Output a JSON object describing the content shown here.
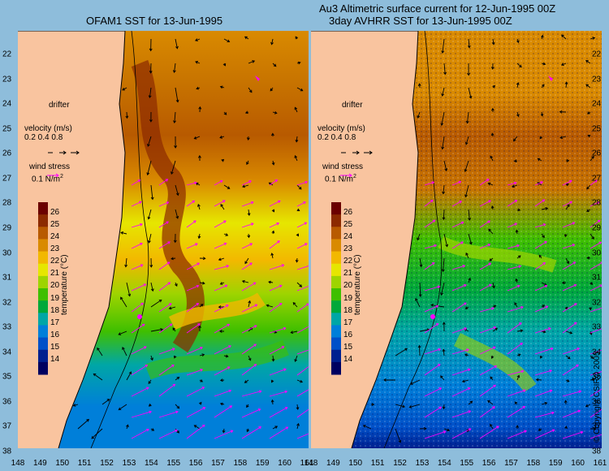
{
  "titles": {
    "left": "OFAM1 SST for 13-Jun-1995",
    "right_line1": "Au3 Altimetric surface current for 12-Jun-1995 00Z",
    "right_line2": "3day AVHRR SST for 13-Jun-1995 00Z"
  },
  "x_ticks": [
    "148",
    "149",
    "150",
    "151",
    "152",
    "153",
    "154",
    "155",
    "156",
    "157",
    "158",
    "159",
    "160",
    "161"
  ],
  "y_ticks": [
    "22",
    "23",
    "24",
    "25",
    "26",
    "27",
    "28",
    "29",
    "30",
    "31",
    "32",
    "33",
    "34",
    "35",
    "36",
    "37",
    "38"
  ],
  "legend": {
    "drifter_label": "drifter",
    "velocity_label": "velocity (m/s)",
    "velocity_values": "0.2 0.4 0.8",
    "wind_label": "wind stress",
    "wind_value": "0.1 N/m",
    "wind_unit_sup": "2"
  },
  "colorbar": {
    "axis_label": "temperature (°C)",
    "ticks": [
      "26",
      "25",
      "24",
      "23",
      "22",
      "21",
      "20",
      "19",
      "18",
      "17",
      "16",
      "15",
      "14"
    ],
    "range": [
      13.5,
      26.5
    ],
    "colors": [
      "#6b0000",
      "#8c2a00",
      "#b85a00",
      "#d98a00",
      "#f2b800",
      "#e6e600",
      "#9ed400",
      "#3fbf00",
      "#00a83a",
      "#00a6a6",
      "#007fd9",
      "#0050c8",
      "#00208f",
      "#000060"
    ]
  },
  "copyright": "© Copyright CSIRO 2005",
  "colors": {
    "background": "#8ebddb",
    "land": "#f9c49f",
    "current_arrow": "#000000",
    "wind_arrow": "#ff00ff",
    "drifter": "#ff00ff"
  }
}
